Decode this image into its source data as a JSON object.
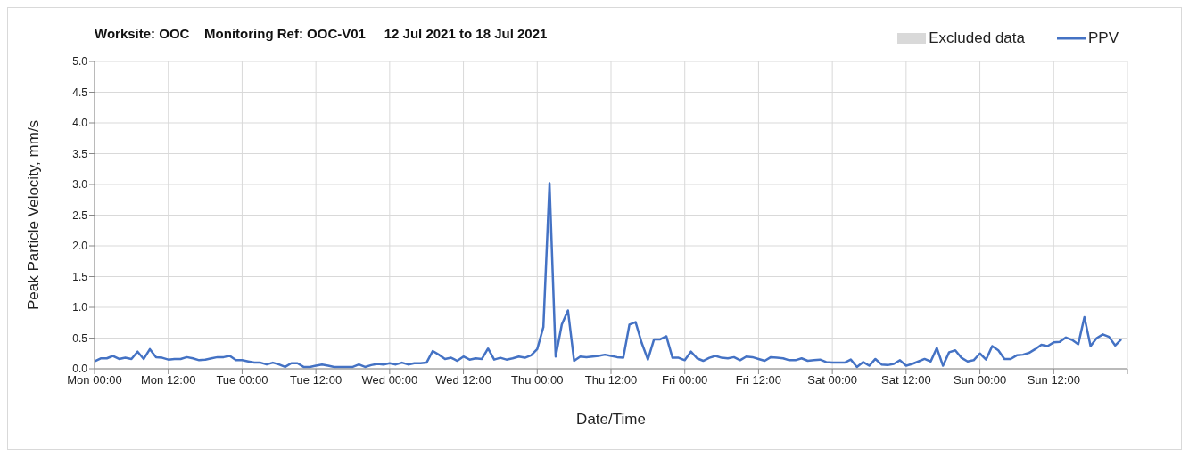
{
  "chart_data": {
    "type": "line",
    "title": "Worksite: OOC    Monitoring Ref: OOC-V01     12 Jul 2021 to 18 Jul 2021",
    "xlabel": "Date/Time",
    "ylabel": "Peak Particle Velocity, mm/s",
    "x": [
      "2021-07-12T00:00",
      "2021-07-12T01:00",
      "2021-07-12T02:00",
      "2021-07-12T03:00",
      "2021-07-12T04:00",
      "2021-07-12T05:00",
      "2021-07-12T06:00",
      "2021-07-12T07:00",
      "2021-07-12T08:00",
      "2021-07-12T09:00",
      "2021-07-12T10:00",
      "2021-07-12T11:00",
      "2021-07-12T12:00",
      "2021-07-12T13:00",
      "2021-07-12T14:00",
      "2021-07-12T15:00",
      "2021-07-12T16:00",
      "2021-07-12T17:00",
      "2021-07-12T18:00",
      "2021-07-12T19:00",
      "2021-07-12T20:00",
      "2021-07-12T21:00",
      "2021-07-12T22:00",
      "2021-07-12T23:00",
      "2021-07-13T00:00",
      "2021-07-13T01:00",
      "2021-07-13T02:00",
      "2021-07-13T03:00",
      "2021-07-13T04:00",
      "2021-07-13T05:00",
      "2021-07-13T06:00",
      "2021-07-13T07:00",
      "2021-07-13T08:00",
      "2021-07-13T09:00",
      "2021-07-13T10:00",
      "2021-07-13T11:00",
      "2021-07-13T12:00",
      "2021-07-13T13:00",
      "2021-07-13T14:00",
      "2021-07-13T15:00",
      "2021-07-13T16:00",
      "2021-07-13T17:00",
      "2021-07-13T18:00",
      "2021-07-13T19:00",
      "2021-07-13T20:00",
      "2021-07-13T21:00",
      "2021-07-13T22:00",
      "2021-07-13T23:00",
      "2021-07-14T00:00",
      "2021-07-14T01:00",
      "2021-07-14T02:00",
      "2021-07-14T03:00",
      "2021-07-14T04:00",
      "2021-07-14T05:00",
      "2021-07-14T06:00",
      "2021-07-14T07:00",
      "2021-07-14T08:00",
      "2021-07-14T09:00",
      "2021-07-14T10:00",
      "2021-07-14T11:00",
      "2021-07-14T12:00",
      "2021-07-14T13:00",
      "2021-07-14T14:00",
      "2021-07-14T15:00",
      "2021-07-14T16:00",
      "2021-07-14T17:00",
      "2021-07-14T18:00",
      "2021-07-14T19:00",
      "2021-07-14T20:00",
      "2021-07-14T21:00",
      "2021-07-14T22:00",
      "2021-07-14T23:00",
      "2021-07-15T00:00",
      "2021-07-15T01:00",
      "2021-07-15T02:00",
      "2021-07-15T03:00",
      "2021-07-15T04:00",
      "2021-07-15T05:00",
      "2021-07-15T06:00",
      "2021-07-15T07:00",
      "2021-07-15T08:00",
      "2021-07-15T09:00",
      "2021-07-15T10:00",
      "2021-07-15T11:00",
      "2021-07-15T12:00",
      "2021-07-15T13:00",
      "2021-07-15T14:00",
      "2021-07-15T15:00",
      "2021-07-15T16:00",
      "2021-07-15T17:00",
      "2021-07-15T18:00",
      "2021-07-15T19:00",
      "2021-07-15T20:00",
      "2021-07-15T21:00",
      "2021-07-15T22:00",
      "2021-07-15T23:00",
      "2021-07-16T00:00",
      "2021-07-16T01:00",
      "2021-07-16T02:00",
      "2021-07-16T03:00",
      "2021-07-16T04:00",
      "2021-07-16T05:00",
      "2021-07-16T06:00",
      "2021-07-16T07:00",
      "2021-07-16T08:00",
      "2021-07-16T09:00",
      "2021-07-16T10:00",
      "2021-07-16T11:00",
      "2021-07-16T12:00",
      "2021-07-16T13:00",
      "2021-07-16T14:00",
      "2021-07-16T15:00",
      "2021-07-16T16:00",
      "2021-07-16T17:00",
      "2021-07-16T18:00",
      "2021-07-16T19:00",
      "2021-07-16T20:00",
      "2021-07-16T21:00",
      "2021-07-16T22:00",
      "2021-07-16T23:00",
      "2021-07-17T00:00",
      "2021-07-17T01:00",
      "2021-07-17T02:00",
      "2021-07-17T03:00",
      "2021-07-17T04:00",
      "2021-07-17T05:00",
      "2021-07-17T06:00",
      "2021-07-17T07:00",
      "2021-07-17T08:00",
      "2021-07-17T09:00",
      "2021-07-17T10:00",
      "2021-07-17T11:00",
      "2021-07-17T12:00",
      "2021-07-17T13:00",
      "2021-07-17T14:00",
      "2021-07-17T15:00",
      "2021-07-17T16:00",
      "2021-07-17T17:00",
      "2021-07-17T18:00",
      "2021-07-17T19:00",
      "2021-07-17T20:00",
      "2021-07-17T21:00",
      "2021-07-17T22:00",
      "2021-07-17T23:00",
      "2021-07-18T00:00",
      "2021-07-18T01:00",
      "2021-07-18T02:00",
      "2021-07-18T03:00",
      "2021-07-18T04:00",
      "2021-07-18T05:00",
      "2021-07-18T06:00",
      "2021-07-18T07:00",
      "2021-07-18T08:00",
      "2021-07-18T09:00",
      "2021-07-18T10:00",
      "2021-07-18T11:00",
      "2021-07-18T12:00",
      "2021-07-18T13:00",
      "2021-07-18T14:00",
      "2021-07-18T15:00",
      "2021-07-18T16:00",
      "2021-07-18T17:00",
      "2021-07-18T18:00",
      "2021-07-18T19:00",
      "2021-07-18T20:00",
      "2021-07-18T21:00",
      "2021-07-18T22:00",
      "2021-07-18T23:00"
    ],
    "series": [
      {
        "name": "Excluded data",
        "type": "area",
        "color": "#d9d9d9",
        "values": [
          null,
          null,
          null,
          null,
          null,
          null,
          null,
          null,
          null,
          null,
          null,
          null,
          null,
          null,
          null,
          null,
          null,
          null,
          null,
          null,
          null,
          null,
          null,
          null,
          null,
          null,
          null,
          null,
          null,
          null,
          null,
          null,
          null,
          null,
          null,
          null,
          null,
          null,
          null,
          null,
          null,
          null,
          null,
          null,
          null,
          null,
          null,
          null,
          null,
          null,
          null,
          null,
          null,
          null,
          null,
          null,
          null,
          null,
          null,
          null,
          null,
          null,
          null,
          null,
          null,
          null,
          null,
          null,
          null,
          null,
          null,
          null,
          null,
          null,
          null,
          null,
          null,
          null,
          null,
          null,
          null,
          null,
          null,
          null,
          null,
          null,
          null,
          null,
          null,
          null,
          null,
          null,
          null,
          null,
          null,
          null,
          null,
          null,
          null,
          null,
          null,
          null,
          null,
          null,
          null,
          null,
          null,
          null,
          null,
          null,
          null,
          null,
          null,
          null,
          null,
          null,
          null,
          null,
          null,
          null,
          null,
          null,
          null,
          null,
          null,
          null,
          null,
          null,
          null,
          null,
          null,
          null,
          null,
          null,
          null,
          null,
          null,
          null,
          null,
          null,
          null,
          null,
          null,
          null,
          null,
          null,
          null,
          null,
          null,
          null,
          null,
          null,
          null,
          null,
          null,
          null,
          null,
          null,
          null,
          null,
          null,
          null,
          null,
          null,
          null,
          null,
          null,
          null
        ]
      },
      {
        "name": "PPV",
        "color": "#4472c4",
        "values": [
          0.12,
          0.17,
          0.17,
          0.21,
          0.16,
          0.18,
          0.16,
          0.28,
          0.16,
          0.32,
          0.19,
          0.18,
          0.15,
          0.16,
          0.16,
          0.19,
          0.17,
          0.14,
          0.15,
          0.17,
          0.19,
          0.19,
          0.21,
          0.14,
          0.14,
          0.12,
          0.1,
          0.1,
          0.07,
          0.1,
          0.07,
          0.03,
          0.09,
          0.09,
          0.03,
          0.03,
          0.05,
          0.07,
          0.05,
          0.03,
          0.03,
          0.03,
          0.03,
          0.07,
          0.03,
          0.06,
          0.08,
          0.07,
          0.09,
          0.07,
          0.1,
          0.07,
          0.09,
          0.09,
          0.1,
          0.29,
          0.23,
          0.16,
          0.18,
          0.13,
          0.2,
          0.15,
          0.17,
          0.16,
          0.33,
          0.15,
          0.18,
          0.15,
          0.17,
          0.2,
          0.18,
          0.22,
          0.32,
          0.68,
          3.02,
          0.2,
          0.72,
          0.95,
          0.13,
          0.2,
          0.19,
          0.2,
          0.21,
          0.23,
          0.21,
          0.19,
          0.18,
          0.72,
          0.76,
          0.42,
          0.15,
          0.48,
          0.48,
          0.53,
          0.18,
          0.18,
          0.14,
          0.28,
          0.17,
          0.13,
          0.18,
          0.21,
          0.18,
          0.17,
          0.19,
          0.14,
          0.2,
          0.19,
          0.16,
          0.13,
          0.19,
          0.18,
          0.17,
          0.14,
          0.14,
          0.17,
          0.13,
          0.14,
          0.15,
          0.11,
          0.1,
          0.1,
          0.1,
          0.15,
          0.03,
          0.11,
          0.05,
          0.16,
          0.07,
          0.06,
          0.08,
          0.14,
          0.05,
          0.08,
          0.12,
          0.16,
          0.12,
          0.34,
          0.05,
          0.27,
          0.3,
          0.18,
          0.12,
          0.14,
          0.25,
          0.15,
          0.37,
          0.3,
          0.16,
          0.16,
          0.22,
          0.23,
          0.26,
          0.32,
          0.39,
          0.37,
          0.43,
          0.44,
          0.51,
          0.47,
          0.4,
          0.84,
          0.37,
          0.5,
          0.56,
          0.52,
          0.38,
          0.48
        ]
      }
    ],
    "xlim": [
      "2021-07-12T00:00",
      "2021-07-19T00:00"
    ],
    "xticks": [
      {
        "value": "2021-07-12T00:00",
        "label": "Mon 00:00"
      },
      {
        "value": "2021-07-12T12:00",
        "label": "Mon 12:00"
      },
      {
        "value": "2021-07-13T00:00",
        "label": "Tue 00:00"
      },
      {
        "value": "2021-07-13T12:00",
        "label": "Tue 12:00"
      },
      {
        "value": "2021-07-14T00:00",
        "label": "Wed 00:00"
      },
      {
        "value": "2021-07-14T12:00",
        "label": "Wed 12:00"
      },
      {
        "value": "2021-07-15T00:00",
        "label": "Thu 00:00"
      },
      {
        "value": "2021-07-15T12:00",
        "label": "Thu 12:00"
      },
      {
        "value": "2021-07-16T00:00",
        "label": "Fri 00:00"
      },
      {
        "value": "2021-07-16T12:00",
        "label": "Fri 12:00"
      },
      {
        "value": "2021-07-17T00:00",
        "label": "Sat 00:00"
      },
      {
        "value": "2021-07-17T12:00",
        "label": "Sat 12:00"
      },
      {
        "value": "2021-07-18T00:00",
        "label": "Sun 00:00"
      },
      {
        "value": "2021-07-18T12:00",
        "label": "Sun 12:00"
      },
      {
        "value": "2021-07-19T00:00",
        "label": null
      }
    ],
    "ylim": [
      0,
      5
    ],
    "yticks": [
      {
        "value": 0,
        "label": "0.0"
      },
      {
        "value": 0.5,
        "label": "0.5"
      },
      {
        "value": 1,
        "label": "1.0"
      },
      {
        "value": 1.5,
        "label": "1.5"
      },
      {
        "value": 2,
        "label": "2.0"
      },
      {
        "value": 2.5,
        "label": "2.5"
      },
      {
        "value": 3,
        "label": "3.0"
      },
      {
        "value": 3.5,
        "label": "3.5"
      },
      {
        "value": 4,
        "label": "4.0"
      },
      {
        "value": 4.5,
        "label": "4.5"
      },
      {
        "value": 5,
        "label": "5.0"
      }
    ],
    "grid": true,
    "legend": "top right",
    "marker": "none",
    "line_style": "solid"
  }
}
